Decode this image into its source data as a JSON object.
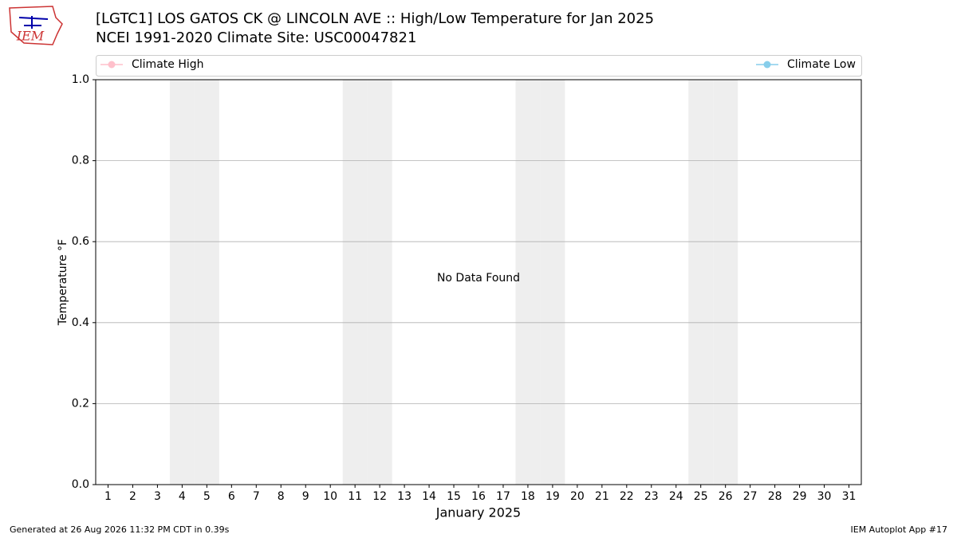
{
  "chart_data": {
    "type": "line",
    "title": "[LGTC1] LOS GATOS CK @ LINCOLN AVE :: High/Low Temperature for Jan 2025",
    "subtitle": "NCEI 1991-2020 Climate Site: USC00047821",
    "y_label": "Temperature °F",
    "x_label": "January 2025",
    "annotation": "No Data Found",
    "logo_text": "IEM",
    "footer_left": "Generated at 26 Aug 2026 11:32 PM CDT in 0.39s",
    "footer_right": "IEM Autoplot App #17",
    "xlim": [
      0.5,
      31.5
    ],
    "xticks": [
      1,
      2,
      3,
      4,
      5,
      6,
      7,
      8,
      9,
      10,
      11,
      12,
      13,
      14,
      15,
      16,
      17,
      18,
      19,
      20,
      21,
      22,
      23,
      24,
      25,
      26,
      27,
      28,
      29,
      30,
      31
    ],
    "ylim": [
      0,
      1
    ],
    "yticks": [
      {
        "value": 0,
        "label": "0.0"
      },
      0.2,
      0.4,
      0.6,
      0.8,
      {
        "value": 1,
        "label": "1.0"
      }
    ],
    "grid": true,
    "shaded_days": [
      4,
      5,
      11,
      12,
      18,
      19,
      25,
      26
    ],
    "shade_color": "#eeeeee",
    "series": [
      {
        "name": "Climate High",
        "color": "#ffc0cb",
        "x": [],
        "values": []
      },
      {
        "name": "Climate Low",
        "color": "#87ceeb",
        "x": [],
        "values": []
      }
    ]
  }
}
